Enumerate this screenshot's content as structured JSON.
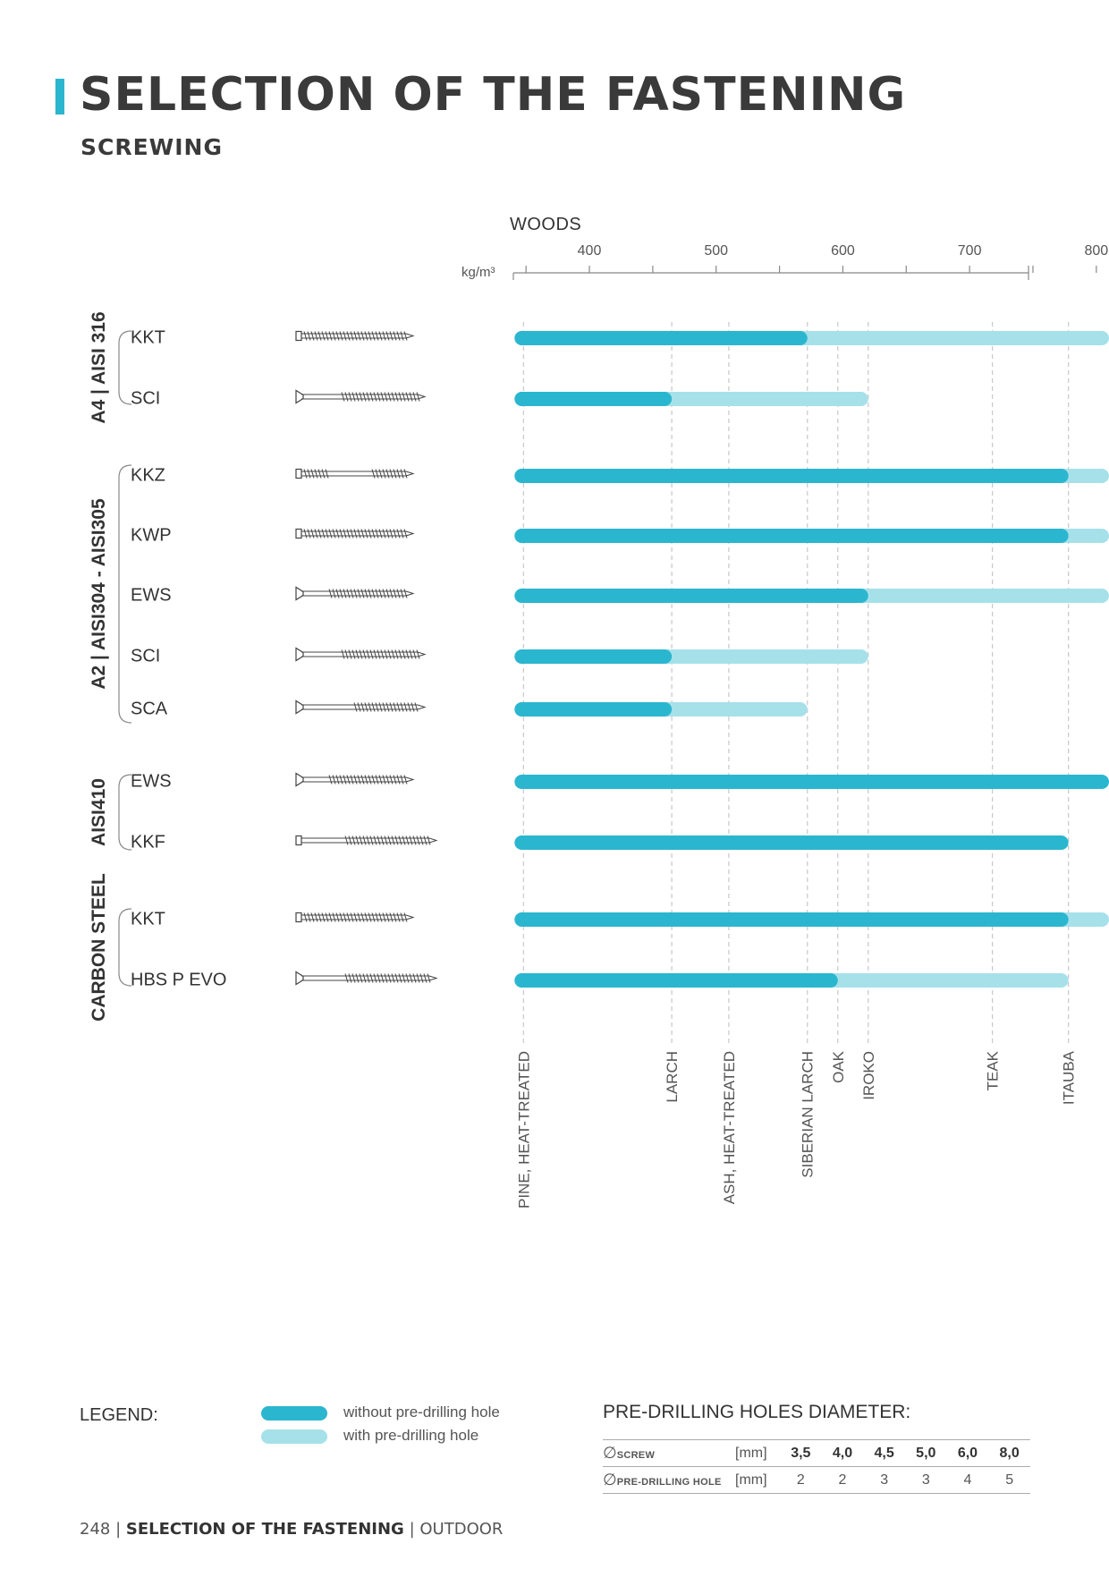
{
  "header": {
    "title": "SELECTION OF THE FASTENING",
    "subtitle": "SCREWING"
  },
  "chart_data": {
    "type": "bar",
    "orientation": "horizontal-range",
    "title": "",
    "xlabel": "WOODS",
    "unit": "kg/m³",
    "xlim": [
      340,
      810
    ],
    "x_ticks": [
      400,
      500,
      600,
      700,
      800
    ],
    "woods": [
      {
        "name": "PINE, HEAT-TREATED",
        "density": 348
      },
      {
        "name": "LARCH",
        "density": 465
      },
      {
        "name": "ASH, HEAT-TREATED",
        "density": 510
      },
      {
        "name": "SIBERIAN LARCH",
        "density": 572
      },
      {
        "name": "OAK",
        "density": 596
      },
      {
        "name": "IROKO",
        "density": 620
      },
      {
        "name": "TEAK",
        "density": 718
      },
      {
        "name": "ITAUBA",
        "density": 778
      }
    ],
    "series": [
      {
        "name": "without pre-drilling hole",
        "color": "#2bb6cf"
      },
      {
        "name": "with pre-drilling hole",
        "color": "#a6e1ea"
      }
    ],
    "groups": [
      {
        "label": "A4 | AISI 316",
        "items": [
          {
            "name": "KKT",
            "without_end": 572,
            "with_end": 810,
            "icon": "screw-kkt-icon"
          },
          {
            "name": "SCI",
            "without_end": 465,
            "with_end": 620,
            "icon": "screw-sci-icon"
          }
        ]
      },
      {
        "label": "A2 | AISI304 - AISI305",
        "items": [
          {
            "name": "KKZ",
            "without_end": 778,
            "with_end": 810,
            "icon": "screw-kkz-icon"
          },
          {
            "name": "KWP",
            "without_end": 778,
            "with_end": 810,
            "icon": "screw-kwp-icon"
          },
          {
            "name": "EWS",
            "without_end": 620,
            "with_end": 810,
            "icon": "screw-ews-icon"
          },
          {
            "name": "SCI",
            "without_end": 465,
            "with_end": 620,
            "icon": "screw-sci-icon"
          },
          {
            "name": "SCA",
            "without_end": 465,
            "with_end": 572,
            "icon": "screw-sca-icon"
          }
        ]
      },
      {
        "label": "AISI410",
        "items": [
          {
            "name": "EWS",
            "without_end": 810,
            "with_end": null,
            "icon": "screw-ews-icon"
          },
          {
            "name": "KKF",
            "without_end": 778,
            "with_end": null,
            "icon": "screw-kkf-icon"
          }
        ]
      },
      {
        "label": "CARBON STEEL",
        "items": [
          {
            "name": "KKT",
            "without_end": 778,
            "with_end": 810,
            "icon": "screw-kkt-icon"
          },
          {
            "name": "HBS P EVO",
            "without_end": 596,
            "with_end": 778,
            "icon": "screw-hbs-icon"
          }
        ]
      }
    ],
    "grid": true,
    "legend_position": "bottom-left"
  },
  "legend": {
    "title": "LEGEND:",
    "without": "without pre-drilling hole",
    "with": "with pre-drilling hole",
    "color_without": "#2bb6cf",
    "color_with": "#a6e1ea"
  },
  "predrilling": {
    "title": "PRE-DRILLING HOLES DIAMETER:",
    "symbol": "∅",
    "row1_label": "SCREW",
    "row2_label": "PRE-DRILLING HOLE",
    "unit": "[mm]",
    "screw": [
      "3,5",
      "4,0",
      "4,5",
      "5,0",
      "6,0",
      "8,0"
    ],
    "hole": [
      "2",
      "2",
      "3",
      "3",
      "4",
      "5"
    ]
  },
  "footer": {
    "page": "248",
    "sep": "|",
    "section": "SELECTION OF THE FASTENING",
    "category": "OUTDOOR"
  }
}
